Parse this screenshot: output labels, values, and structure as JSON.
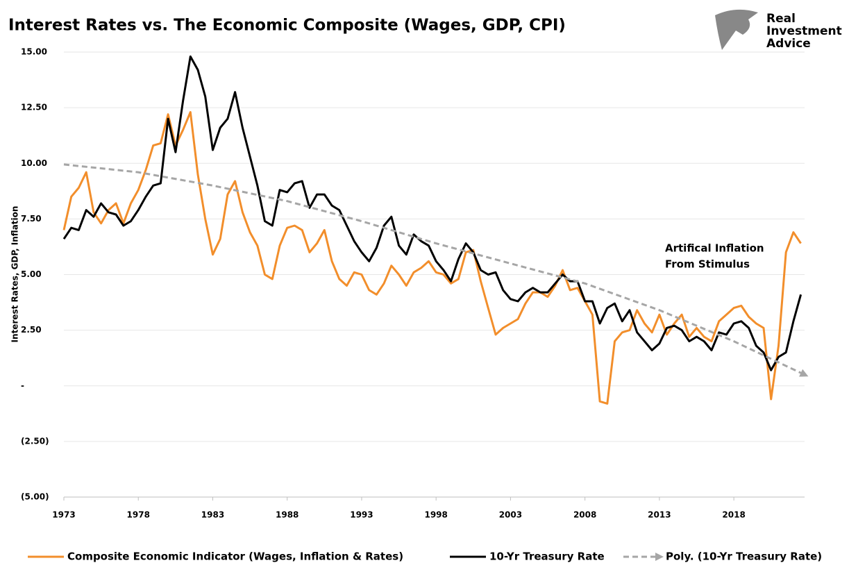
{
  "chart_data": {
    "type": "line",
    "title": "Interest Rates vs. The Economic Composite (Wages, GDP, CPI)",
    "ylabel": "Interest Rates, GDP, Inflation",
    "logo": [
      "Real",
      "Investment",
      "Advice"
    ],
    "annotation": [
      "Artifical Inflation",
      "From Stimulus"
    ],
    "xlim": [
      1973,
      2022.75
    ],
    "xticks": [
      1973,
      1978,
      1983,
      1988,
      1993,
      1998,
      2003,
      2008,
      2013,
      2018
    ],
    "ylim": [
      -5,
      15
    ],
    "yticks": [
      {
        "value": 15,
        "label": "15.00"
      },
      {
        "value": 12.5,
        "label": "12.50"
      },
      {
        "value": 10,
        "label": "10.00"
      },
      {
        "value": 7.5,
        "label": "7.50"
      },
      {
        "value": 5,
        "label": "5.00"
      },
      {
        "value": 2.5,
        "label": "2.50"
      },
      {
        "value": 0,
        "label": "-"
      },
      {
        "value": -2.5,
        "label": "(2.50)"
      },
      {
        "value": -5,
        "label": "(5.00)"
      }
    ],
    "grid": true,
    "legend": "bottom",
    "x": [
      1973,
      1973.5,
      1974,
      1974.5,
      1975,
      1975.5,
      1976,
      1976.5,
      1977,
      1977.5,
      1978,
      1978.5,
      1979,
      1979.5,
      1980,
      1980.5,
      1981,
      1981.5,
      1982,
      1982.5,
      1983,
      1983.5,
      1984,
      1984.5,
      1985,
      1985.5,
      1986,
      1986.5,
      1987,
      1987.5,
      1988,
      1988.5,
      1989,
      1989.5,
      1990,
      1990.5,
      1991,
      1991.5,
      1992,
      1992.5,
      1993,
      1993.5,
      1994,
      1994.5,
      1995,
      1995.5,
      1996,
      1996.5,
      1997,
      1997.5,
      1998,
      1998.5,
      1999,
      1999.5,
      2000,
      2000.5,
      2001,
      2001.5,
      2002,
      2002.5,
      2003,
      2003.5,
      2004,
      2004.5,
      2005,
      2005.5,
      2006,
      2006.5,
      2007,
      2007.5,
      2008,
      2008.5,
      2009,
      2009.5,
      2010,
      2010.5,
      2011,
      2011.5,
      2012,
      2012.5,
      2013,
      2013.5,
      2014,
      2014.5,
      2015,
      2015.5,
      2016,
      2016.5,
      2017,
      2017.5,
      2018,
      2018.5,
      2019,
      2019.5,
      2020,
      2020.5,
      2021,
      2021.5,
      2022,
      2022.5
    ],
    "series": [
      {
        "name": "Composite Economic Indicator (Wages, Inflation & Rates)",
        "color": "#f28e2b",
        "style": "solid",
        "values": [
          7.0,
          8.5,
          8.9,
          9.6,
          7.8,
          7.3,
          7.9,
          8.2,
          7.3,
          8.2,
          8.8,
          9.7,
          10.8,
          10.9,
          12.2,
          10.8,
          11.5,
          12.3,
          9.5,
          7.5,
          5.9,
          6.6,
          8.6,
          9.2,
          7.8,
          6.9,
          6.3,
          5.0,
          4.8,
          6.3,
          7.1,
          7.2,
          7.0,
          6.0,
          6.4,
          7.0,
          5.6,
          4.8,
          4.5,
          5.1,
          5.0,
          4.3,
          4.1,
          4.6,
          5.4,
          5.0,
          4.5,
          5.1,
          5.3,
          5.6,
          5.1,
          5.0,
          4.6,
          4.8,
          6.0,
          6.1,
          4.7,
          3.5,
          2.3,
          2.6,
          2.8,
          3.0,
          3.7,
          4.2,
          4.2,
          4.0,
          4.5,
          5.2,
          4.3,
          4.4,
          3.8,
          3.2,
          -0.7,
          -0.8,
          2.0,
          2.4,
          2.5,
          3.4,
          2.8,
          2.4,
          3.2,
          2.3,
          2.8,
          3.2,
          2.2,
          2.6,
          2.2,
          2.0,
          2.9,
          3.2,
          3.5,
          3.6,
          3.1,
          2.8,
          2.6,
          -0.6,
          1.8,
          6.0,
          6.9,
          6.4
        ]
      },
      {
        "name": "10-Yr Treasury Rate",
        "color": "#000000",
        "style": "solid",
        "values": [
          6.6,
          7.1,
          7.0,
          7.9,
          7.6,
          8.2,
          7.8,
          7.7,
          7.2,
          7.4,
          7.9,
          8.5,
          9.0,
          9.1,
          12.0,
          10.5,
          12.8,
          14.8,
          14.2,
          13.0,
          10.6,
          11.6,
          12.0,
          13.2,
          11.6,
          10.3,
          9.0,
          7.4,
          7.2,
          8.8,
          8.7,
          9.1,
          9.2,
          8.0,
          8.6,
          8.6,
          8.1,
          7.9,
          7.2,
          6.5,
          6.0,
          5.6,
          6.2,
          7.2,
          7.6,
          6.3,
          5.9,
          6.8,
          6.5,
          6.3,
          5.6,
          5.2,
          4.7,
          5.7,
          6.4,
          6.0,
          5.2,
          5.0,
          5.1,
          4.3,
          3.9,
          3.8,
          4.2,
          4.4,
          4.2,
          4.2,
          4.6,
          5.0,
          4.7,
          4.7,
          3.8,
          3.8,
          2.8,
          3.5,
          3.7,
          2.9,
          3.4,
          2.4,
          2.0,
          1.6,
          1.9,
          2.6,
          2.7,
          2.5,
          2.0,
          2.2,
          2.0,
          1.6,
          2.4,
          2.3,
          2.8,
          2.9,
          2.6,
          1.8,
          1.5,
          0.7,
          1.3,
          1.5,
          2.9,
          4.1
        ]
      },
      {
        "name": "Poly. (10-Yr Treasury Rate)",
        "color": "#a6a6a6",
        "style": "dashed",
        "x": [
          1973,
          1978,
          1983,
          1988,
          1993,
          1998,
          2003,
          2008,
          2013,
          2018,
          2022.75
        ],
        "values": [
          9.95,
          9.6,
          9.0,
          8.3,
          7.4,
          6.4,
          5.5,
          4.6,
          3.4,
          2.0,
          0.5
        ]
      }
    ]
  }
}
